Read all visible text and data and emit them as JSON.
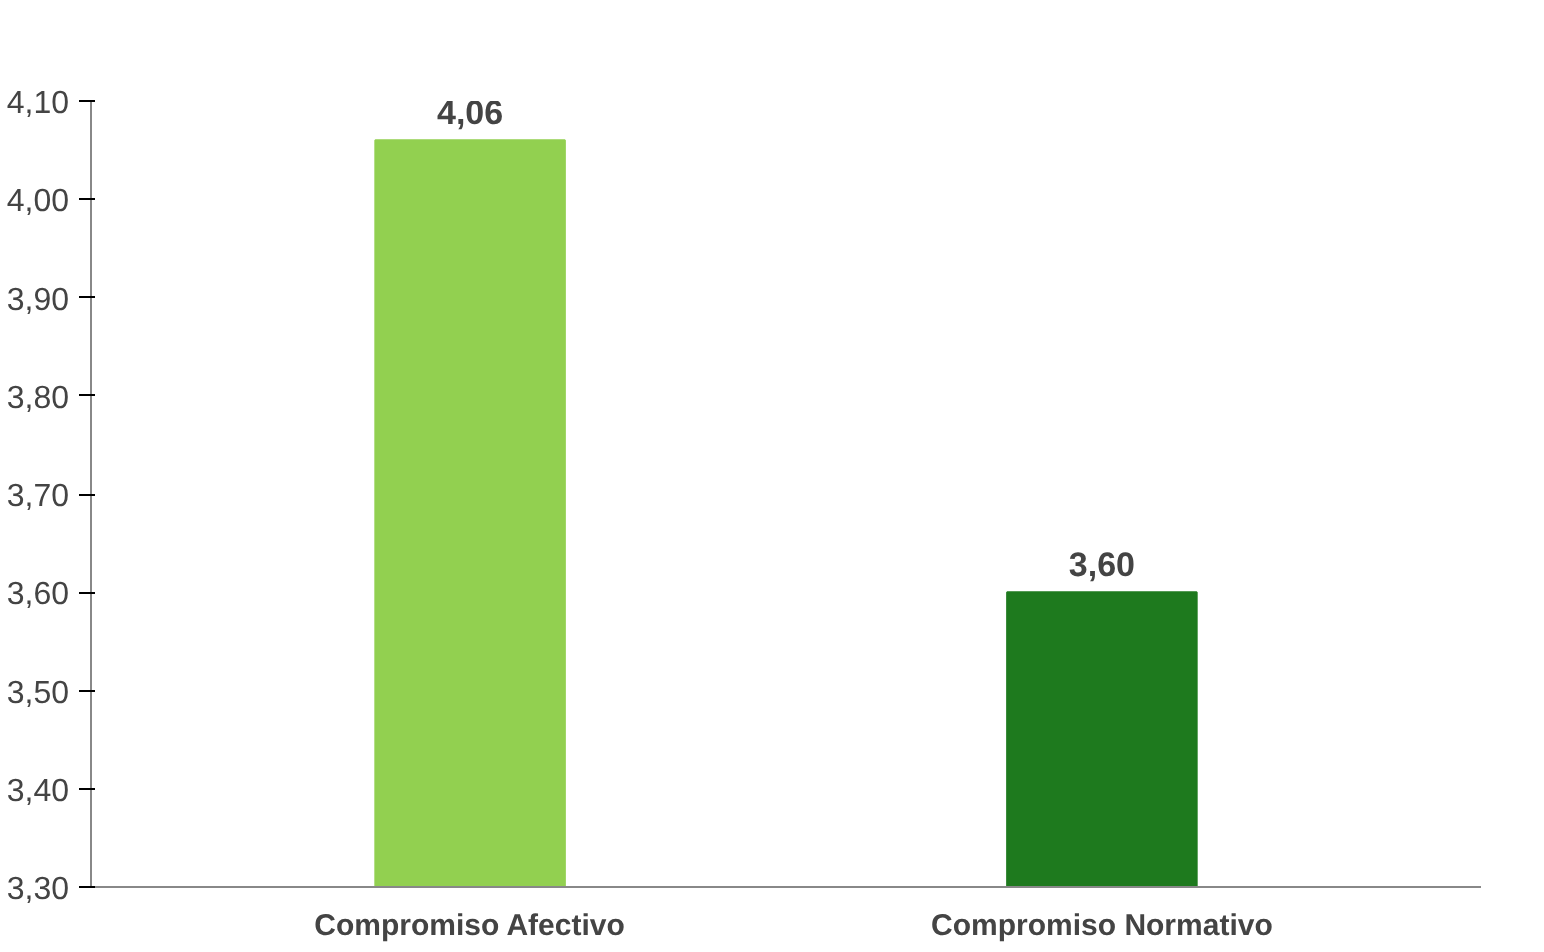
{
  "chart_data": {
    "type": "bar",
    "categories": [
      "Compromiso Afectivo",
      "Compromiso Normativo"
    ],
    "values": [
      4.06,
      3.6
    ],
    "colors": [
      "#92d050",
      "#1e7a1e"
    ],
    "value_labels": [
      "4,06",
      "3,60"
    ],
    "ylim": [
      3.3,
      4.1
    ],
    "yticks": [
      {
        "value": 3.3,
        "label": "3,30"
      },
      {
        "value": 3.4,
        "label": "3,40"
      },
      {
        "value": 3.5,
        "label": "3,50"
      },
      {
        "value": 3.6,
        "label": "3,60"
      },
      {
        "value": 3.7,
        "label": "3,70"
      },
      {
        "value": 3.8,
        "label": "3,80"
      },
      {
        "value": 3.9,
        "label": "3,90"
      },
      {
        "value": 4.0,
        "label": "4,00"
      },
      {
        "value": 4.1,
        "label": "4,10"
      }
    ],
    "grid": false
  }
}
